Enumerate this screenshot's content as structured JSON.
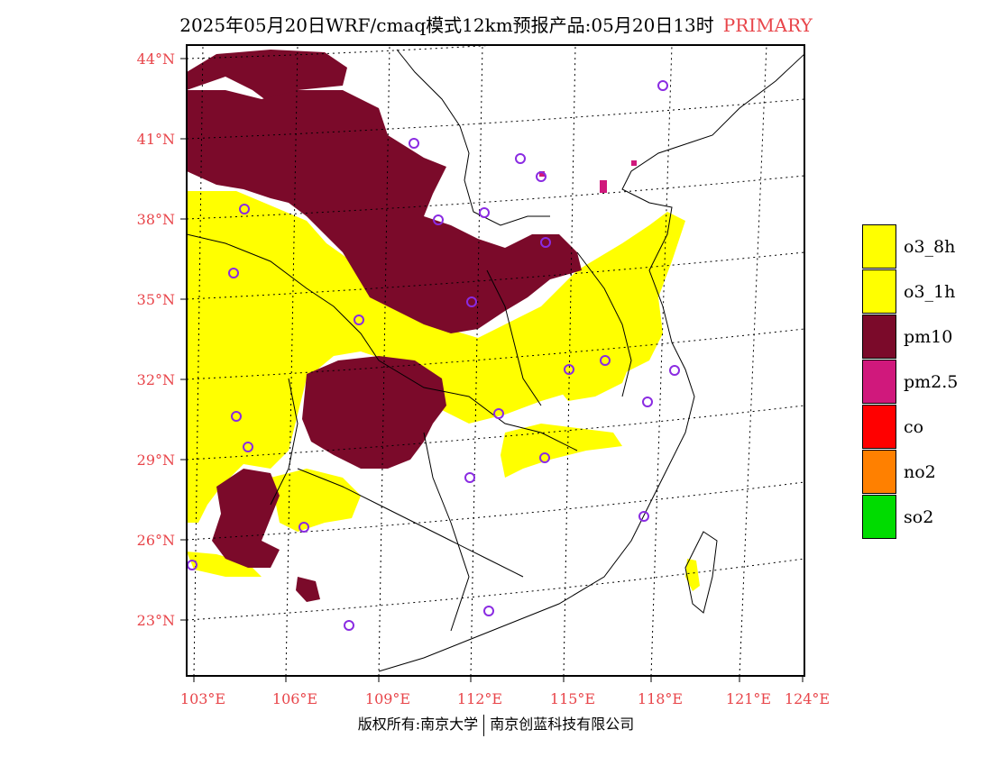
{
  "title": {
    "main": "2025年05月20日WRF/cmaq模式12km预报产品:05月20日13时",
    "tag": "PRIMARY"
  },
  "axes": {
    "lat_labels": [
      "44°N",
      "41°N",
      "38°N",
      "35°N",
      "32°N",
      "29°N",
      "26°N",
      "23°N"
    ],
    "lon_labels": [
      "103°E",
      "106°E",
      "109°E",
      "112°E",
      "115°E",
      "118°E",
      "121°E",
      "124°E"
    ],
    "label_color": "#e8454a"
  },
  "legend": {
    "items": [
      {
        "label": "o3_8h",
        "color": "#ffff00"
      },
      {
        "label": "o3_1h",
        "color": "#ffff00"
      },
      {
        "label": "pm10",
        "color": "#7b0a2a"
      },
      {
        "label": "pm2.5",
        "color": "#d0187c"
      },
      {
        "label": "co",
        "color": "#ff0000"
      },
      {
        "label": "no2",
        "color": "#ff8000"
      },
      {
        "label": "so2",
        "color": "#00dc00"
      }
    ]
  },
  "colors": {
    "pm10": "#7b0a2a",
    "o3": "#ffff00",
    "pm25": "#d0187c",
    "station": "#8a2be2"
  },
  "footer": {
    "left": "版权所有:南京大学",
    "right": "南京创蓝科技有限公司"
  }
}
